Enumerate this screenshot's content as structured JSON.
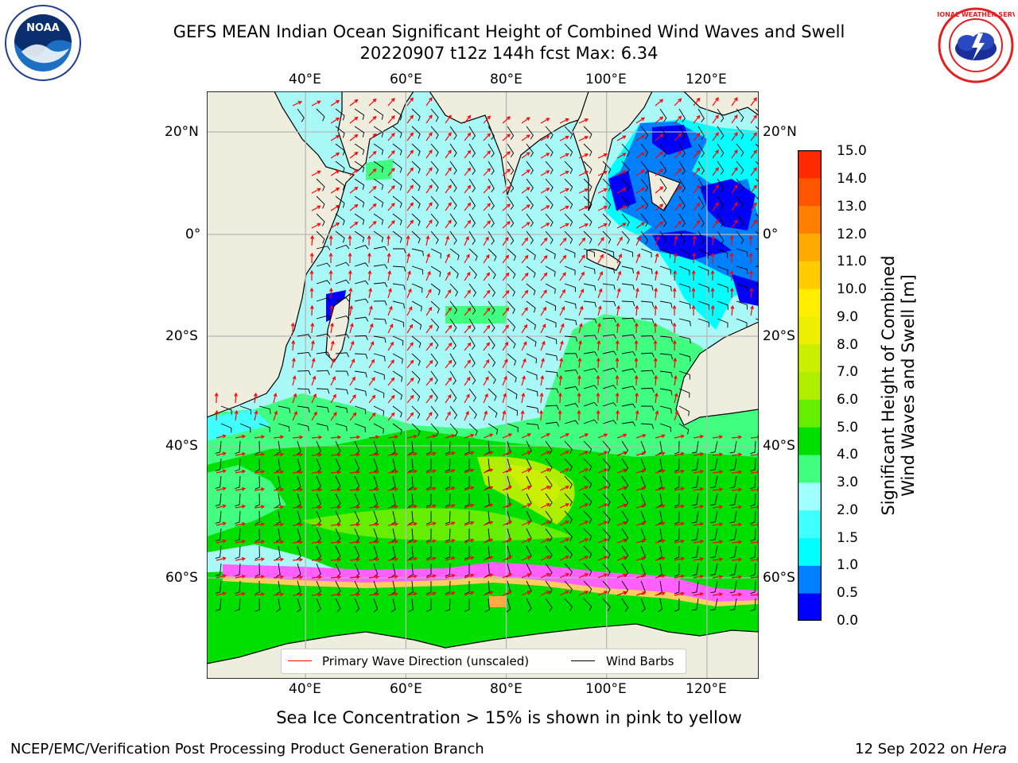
{
  "title": {
    "line1": "GEFS MEAN Indian Ocean Significant Height of Combined Wind Waves and Swell",
    "line2": "20220907 t12z 144h fcst   Max: 6.34"
  },
  "logos": {
    "left": {
      "name": "noaa-logo",
      "text": "NOAA"
    },
    "right": {
      "name": "nws-logo",
      "text": "NATIONAL WEATHER SERVICE"
    }
  },
  "axes": {
    "lon_labels": [
      "40°E",
      "60°E",
      "80°E",
      "100°E",
      "120°E"
    ],
    "lon_values": [
      40,
      60,
      80,
      100,
      120
    ],
    "lat_labels_left": [
      "20°N",
      "0°",
      "20°S",
      "40°S",
      "60°S"
    ],
    "lat_labels_right": [
      "20°N",
      "0°",
      "20°S",
      "40°S",
      "60°S"
    ],
    "lat_values": [
      20,
      0,
      -20,
      -40,
      -60
    ],
    "lon_range": [
      20,
      130
    ],
    "lat_range": [
      -76,
      27
    ],
    "grid": true
  },
  "colorbar": {
    "label_line1": "Significant Height of Combined",
    "label_line2": "Wind Waves and Swell [m]",
    "ticks": [
      "15.0",
      "14.0",
      "13.0",
      "12.0",
      "11.0",
      "10.0",
      "9.0",
      "8.0",
      "7.0",
      "6.0",
      "5.0",
      "4.0",
      "3.0",
      "2.0",
      "1.5",
      "1.0",
      "0.5",
      "0.0"
    ],
    "levels": [
      0,
      0.5,
      1.0,
      1.5,
      2.0,
      3.0,
      4.0,
      5.0,
      6.0,
      7.0,
      8.0,
      9.0,
      10.0,
      11.0,
      12.0,
      13.0,
      14.0,
      15.0
    ],
    "colors": [
      "#0000ff",
      "#0080ff",
      "#00ffff",
      "#40ffff",
      "#a0ffff",
      "#40ff80",
      "#00e000",
      "#66ee00",
      "#b0ee00",
      "#ccee00",
      "#eeee00",
      "#ffee00",
      "#ffcc00",
      "#ffaa00",
      "#ff8000",
      "#ff5500",
      "#ff2a00"
    ]
  },
  "colors": {
    "land": "#efedde",
    "ocean_main": "#a8f8f8",
    "ocean_mid": "#40ff80",
    "ocean_south": "#00e000",
    "ocean_low": "#0000ff",
    "ice": "#ff60ff",
    "wave_arrow": "#ff0000",
    "wind_barb": "#000000"
  },
  "legend": {
    "wave_label": "Primary Wave Direction (unscaled)",
    "wind_label": "Wind Barbs"
  },
  "note": "Sea Ice Concentration > 15% is shown in pink to yellow",
  "footer": {
    "left": "NCEP/EMC/Verification Post Processing Product Generation Branch",
    "right_date": "12 Sep 2022 on ",
    "right_host": "Hera"
  }
}
